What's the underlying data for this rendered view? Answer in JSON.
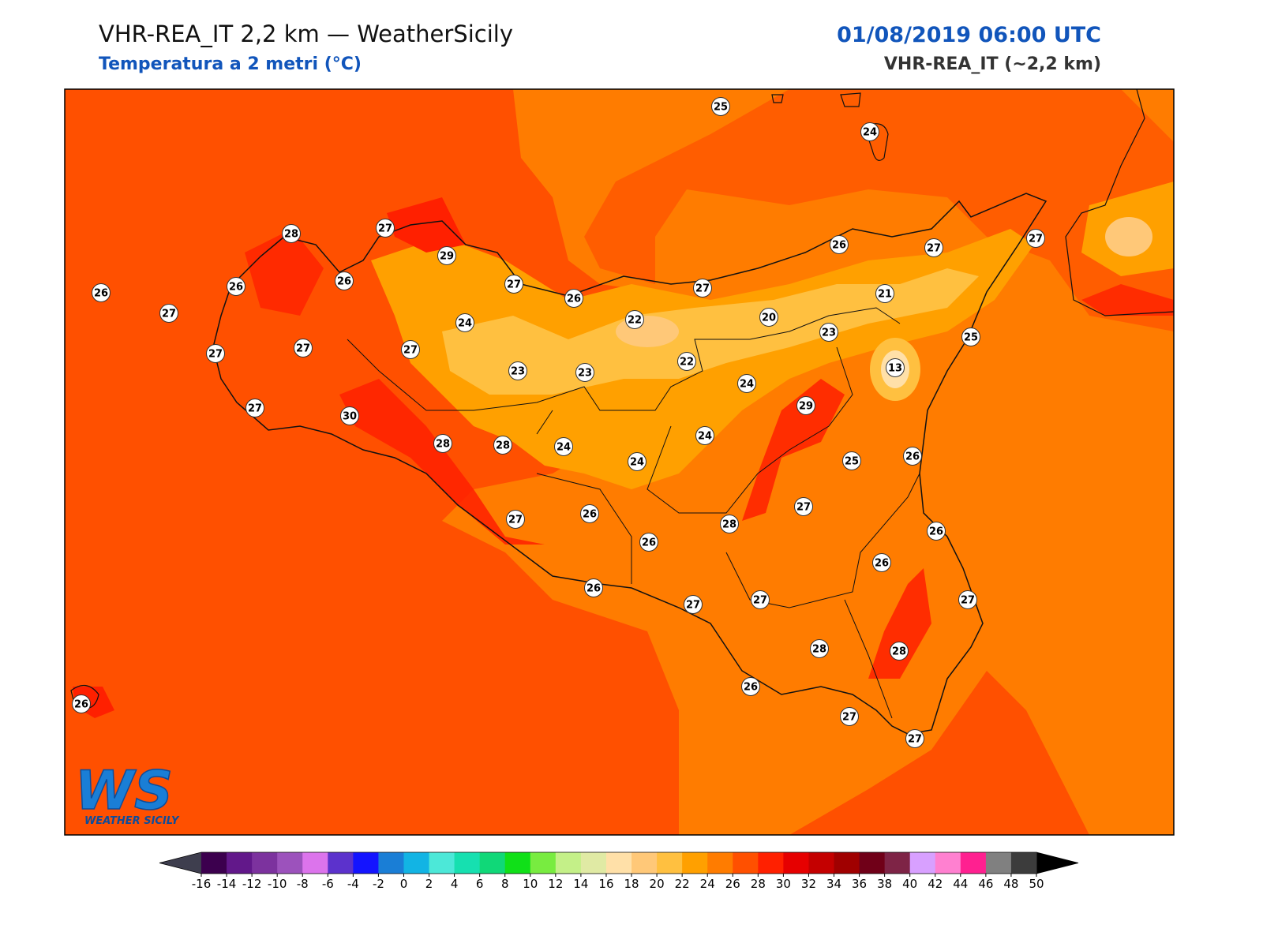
{
  "header": {
    "title": "VHR-REA_IT 2,2 km — WeatherSicily",
    "subtitle": "Temperatura a 2 metri (°C)",
    "datetime": "01/08/2019 06:00 UTC",
    "model": "VHR-REA_IT (~2,2 km)"
  },
  "stations": [
    25,
    24,
    28,
    27,
    29,
    26,
    26,
    27,
    26,
    26,
    27,
    24,
    22,
    27,
    20,
    26,
    27,
    27,
    21,
    23,
    25,
    13,
    27,
    27,
    27,
    23,
    23,
    22,
    24,
    29,
    27,
    30,
    28,
    28,
    24,
    24,
    24,
    25,
    26,
    27,
    28,
    27,
    26,
    26,
    26,
    26,
    26,
    27,
    27,
    27,
    28,
    28,
    26,
    27,
    27,
    26
  ],
  "logo": {
    "letters": "WS",
    "caption": "WEATHER SICILY"
  },
  "colorbar": {
    "ticks": [
      -16,
      -14,
      -12,
      -10,
      -8,
      -6,
      -4,
      -2,
      0,
      2,
      4,
      6,
      8,
      10,
      12,
      14,
      16,
      18,
      20,
      22,
      24,
      26,
      28,
      30,
      32,
      34,
      36,
      38,
      40,
      42,
      44,
      46,
      48,
      50
    ],
    "colors": [
      "#3c004e",
      "#62188a",
      "#7c329e",
      "#9c52bc",
      "#dc74ec",
      "#5c32cc",
      "#1414ff",
      "#1a7ed6",
      "#12b4e4",
      "#4ce8d8",
      "#16e0b0",
      "#10d878",
      "#10e018",
      "#78ec40",
      "#c4f088",
      "#e0eaa4",
      "#ffe0a8",
      "#ffc878",
      "#ffc040",
      "#ffa000",
      "#ff7c00",
      "#ff5000",
      "#ff2000",
      "#e60000",
      "#c40000",
      "#a00000",
      "#700018",
      "#7e2446",
      "#d8a0ff",
      "#ff80d0",
      "#ff2090",
      "#808080",
      "#3c3c3c"
    ],
    "under_color": "#3e3e4e",
    "over_color": "#000000"
  }
}
